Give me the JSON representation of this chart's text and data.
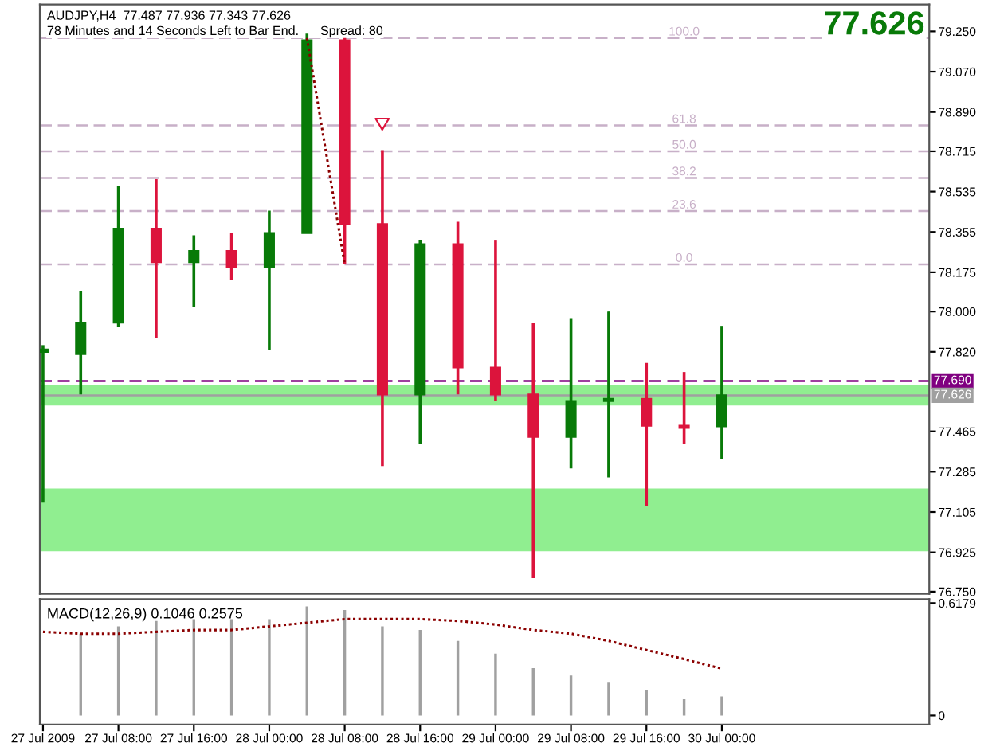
{
  "chart_data": [
    {
      "type": "candlestick",
      "x": [
        "2009-07-27T00:00",
        "2009-07-27T04:00",
        "2009-07-27T08:00",
        "2009-07-27T12:00",
        "2009-07-27T16:00",
        "2009-07-27T20:00",
        "2009-07-28T00:00",
        "2009-07-28T04:00",
        "2009-07-28T08:00",
        "2009-07-28T12:00",
        "2009-07-28T16:00",
        "2009-07-28T20:00",
        "2009-07-29T00:00",
        "2009-07-29T04:00",
        "2009-07-29T08:00",
        "2009-07-29T12:00",
        "2009-07-29T16:00",
        "2009-07-29T20:00",
        "2009-07-30T00:00"
      ],
      "ohlc": [
        [
          77.82,
          77.85,
          77.15,
          77.83
        ],
        [
          77.81,
          78.09,
          77.63,
          77.95
        ],
        [
          77.95,
          78.56,
          77.93,
          78.37
        ],
        [
          78.37,
          78.59,
          77.88,
          78.22
        ],
        [
          78.22,
          78.34,
          78.02,
          78.27
        ],
        [
          78.27,
          78.35,
          78.14,
          78.2
        ],
        [
          78.2,
          78.45,
          77.83,
          78.35
        ],
        [
          78.35,
          79.24,
          78.35,
          79.21
        ],
        [
          79.21,
          79.22,
          78.21,
          78.39
        ],
        [
          78.39,
          78.72,
          77.31,
          77.63
        ],
        [
          77.63,
          78.32,
          77.41,
          78.3
        ],
        [
          78.3,
          78.4,
          77.63,
          77.75
        ],
        [
          77.75,
          78.32,
          77.6,
          77.63
        ],
        [
          77.63,
          77.95,
          76.81,
          77.44
        ],
        [
          77.44,
          77.97,
          77.3,
          77.6
        ],
        [
          77.6,
          78.0,
          77.26,
          77.61
        ],
        [
          77.61,
          77.77,
          77.13,
          77.49
        ],
        [
          77.49,
          77.73,
          77.41,
          77.48
        ],
        [
          77.487,
          77.936,
          77.343,
          77.626
        ]
      ],
      "colors": [
        "#087a08",
        "#087a08",
        "#087a08",
        "#dc143c",
        "#087a08",
        "#dc143c",
        "#087a08",
        "#087a08",
        "#dc143c",
        "#dc143c",
        "#087a08",
        "#dc143c",
        "#dc143c",
        "#dc143c",
        "#087a08",
        "#087a08",
        "#dc143c",
        "#dc143c",
        "#087a08"
      ],
      "series": [
        {
          "type": "line",
          "color": "#8b0000",
          "line_style": "dotted",
          "x": [
            "2009-07-28T04:00",
            "2009-07-28T08:00"
          ],
          "values": [
            79.22,
            78.21
          ]
        }
      ],
      "xlim": [
        "2009-07-26T23:40",
        "2009-07-30T22:00"
      ],
      "ylim": [
        76.74,
        79.37
      ],
      "yticks": [
        {
          "value": 79.25,
          "label": "79.250"
        },
        {
          "value": 79.07,
          "label": "79.070"
        },
        {
          "value": 78.89,
          "label": "78.890"
        },
        {
          "value": 78.715,
          "label": "78.715"
        },
        {
          "value": 78.535,
          "label": "78.535"
        },
        {
          "value": 78.355,
          "label": "78.355"
        },
        {
          "value": 78.175,
          "label": "78.175"
        },
        {
          "value": 78.0,
          "label": "78.000"
        },
        {
          "value": 77.82,
          "label": "77.820"
        },
        {
          "value": 77.465,
          "label": "77.465"
        },
        {
          "value": 77.285,
          "label": "77.285"
        },
        {
          "value": 77.105,
          "label": "77.105"
        },
        {
          "value": 76.925,
          "label": "76.925"
        },
        {
          "value": 76.75,
          "label": "76.750"
        }
      ],
      "tick_labels": "y",
      "bands": [
        {
          "axis": "y",
          "from": 77.58,
          "to": 77.67,
          "color": "#90ee90"
        },
        {
          "axis": "y",
          "from": 76.93,
          "to": 77.21,
          "color": "#90ee90"
        }
      ],
      "ref_lines": [
        {
          "axis": "y",
          "value": 79.22,
          "color": "#c8b0c8",
          "line_style": "dashed"
        },
        {
          "axis": "y",
          "value": 78.83,
          "color": "#c8b0c8",
          "line_style": "dashed"
        },
        {
          "axis": "y",
          "value": 78.715,
          "color": "#c8b0c8",
          "line_style": "dashed"
        },
        {
          "axis": "y",
          "value": 78.596,
          "color": "#c8b0c8",
          "line_style": "dashed"
        },
        {
          "axis": "y",
          "value": 78.448,
          "color": "#c8b0c8",
          "line_style": "dashed"
        },
        {
          "axis": "y",
          "value": 78.21,
          "color": "#c8b0c8",
          "line_style": "dashed"
        },
        {
          "axis": "y",
          "value": 77.69,
          "label": "77.690",
          "color": "#800080",
          "line_style": "dashed"
        },
        {
          "axis": "y",
          "value": 77.626,
          "label": "77.626",
          "color": "#a0a0a0",
          "line_style": "solid"
        }
      ],
      "annotations": [
        "AUDJPY,H4  77.487 77.936 77.343 77.626",
        "78 Minutes and 14 Seconds Left to Bar End.      Spread: 80",
        "77.626",
        {
          "text": "100.0",
          "x": "2009-07-29T20:00",
          "y": 79.22
        },
        {
          "text": "61.8",
          "x": "2009-07-29T20:00",
          "y": 78.83
        },
        {
          "text": "50.0",
          "x": "2009-07-29T20:00",
          "y": 78.715
        },
        {
          "text": "38.2",
          "x": "2009-07-29T20:00",
          "y": 78.596
        },
        {
          "text": "23.6",
          "x": "2009-07-29T20:00",
          "y": 78.448
        },
        {
          "text": "0.0",
          "x": "2009-07-29T20:00",
          "y": 78.21
        }
      ]
    },
    {
      "type": "bar",
      "title": "MACD(12,26,9) 0.1046 0.2575",
      "x": [
        "2009-07-27T00:00",
        "2009-07-27T04:00",
        "2009-07-27T08:00",
        "2009-07-27T12:00",
        "2009-07-27T16:00",
        "2009-07-27T20:00",
        "2009-07-28T00:00",
        "2009-07-28T04:00",
        "2009-07-28T08:00",
        "2009-07-28T12:00",
        "2009-07-28T16:00",
        "2009-07-28T20:00",
        "2009-07-29T00:00",
        "2009-07-29T04:00",
        "2009-07-29T08:00",
        "2009-07-29T12:00",
        "2009-07-29T16:00",
        "2009-07-29T20:00",
        "2009-07-30T00:00"
      ],
      "series": [
        {
          "type": "bar",
          "color": "#a0a0a0",
          "values": [
            null,
            0.45,
            0.49,
            0.52,
            0.53,
            0.53,
            0.53,
            0.6,
            0.58,
            0.49,
            0.47,
            0.41,
            0.34,
            0.26,
            0.22,
            0.18,
            0.14,
            0.09,
            0.1046
          ]
        },
        {
          "type": "line",
          "color": "#8b0000",
          "line_style": "dotted",
          "values": [
            0.46,
            0.45,
            0.45,
            0.46,
            0.47,
            0.47,
            0.49,
            0.51,
            0.53,
            0.53,
            0.53,
            0.52,
            0.5,
            0.47,
            0.45,
            0.41,
            0.36,
            0.31,
            0.2575
          ]
        }
      ],
      "xlim": [
        "2009-07-26T23:40",
        "2009-07-30T22:00"
      ],
      "xticks": [
        {
          "value": "2009-07-27T00:00",
          "label": "27 Jul 2009"
        },
        {
          "value": "2009-07-27T08:00",
          "label": "27 Jul 08:00"
        },
        {
          "value": "2009-07-27T16:00",
          "label": "27 Jul 16:00"
        },
        {
          "value": "2009-07-28T00:00",
          "label": "28 Jul 00:00"
        },
        {
          "value": "2009-07-28T08:00",
          "label": "28 Jul 08:00"
        },
        {
          "value": "2009-07-28T16:00",
          "label": "28 Jul 16:00"
        },
        {
          "value": "2009-07-29T00:00",
          "label": "29 Jul 00:00"
        },
        {
          "value": "2009-07-29T08:00",
          "label": "29 Jul 08:00"
        },
        {
          "value": "2009-07-29T16:00",
          "label": "29 Jul 16:00"
        },
        {
          "value": "2009-07-30T00:00",
          "label": "30 Jul 00:00"
        }
      ],
      "ylim": [
        -0.05,
        0.64
      ],
      "yticks": [
        0,
        0.6179
      ]
    }
  ]
}
